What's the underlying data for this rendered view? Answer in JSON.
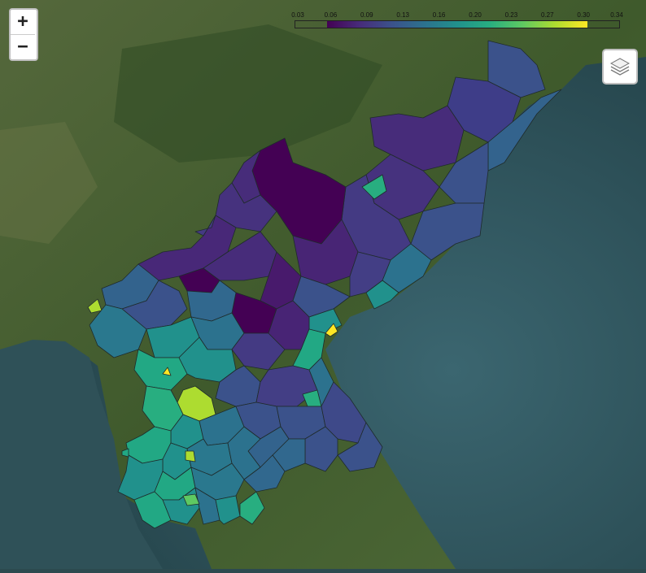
{
  "controls": {
    "zoom_in": "+",
    "zoom_out": "−"
  },
  "legend": {
    "ticks": [
      "0.03",
      "0.06",
      "0.09",
      "0.13",
      "0.16",
      "0.20",
      "0.23",
      "0.27",
      "0.30",
      "0.34"
    ],
    "colormap": [
      "#440154",
      "#472c7a",
      "#3b528b",
      "#2c728e",
      "#21918c",
      "#28ae80",
      "#5ec962",
      "#addc30",
      "#fde725"
    ]
  },
  "icons": {
    "layers": "layers-icon"
  },
  "colors": {
    "sea": "#30545b",
    "land": "#3f5a2c"
  }
}
